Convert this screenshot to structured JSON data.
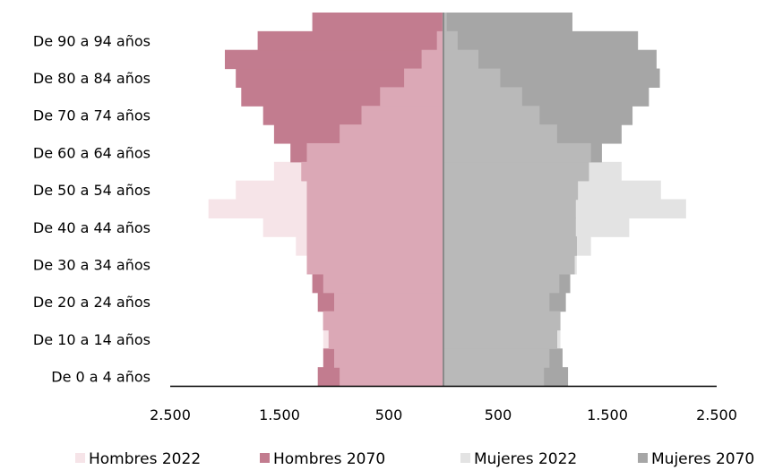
{
  "chart_data": {
    "type": "bar",
    "orientation": "horizontal",
    "layout": "population-pyramid",
    "categories": [
      "De 0 a 4 años",
      "De 5 a 9 años",
      "De 10 a 14 años",
      "De 15 a 19 años",
      "De 20 a 24 años",
      "De 25 a 29 años",
      "De 30 a 34 años",
      "De 35 a 39 años",
      "De 40 a 44 años",
      "De 45 a 49 años",
      "De 50 a 54 años",
      "De 55 a 59 años",
      "De 60 a 64 años",
      "De 65 a 69 años",
      "De 70 a 74 años",
      "De 75 a 79 años",
      "De 80 a 84 años",
      "De 85 a 89 años",
      "De 90 a 94 años",
      "De 95 a 99 años"
    ],
    "visible_category_labels": [
      "De 0 a 4 años",
      "De 10 a 14 años",
      "De 20 a 24 años",
      "De 30 a 34 años",
      "De 40 a 44 años",
      "De 50 a 54 años",
      "De 60 a 64 años",
      "De 70 a 74 años",
      "De 80 a 84 años",
      "De 90 a 94 años"
    ],
    "series": [
      {
        "name": "Hombres 2022",
        "side": "left",
        "color": "#f6e4e8",
        "values": [
          950,
          1000,
          1100,
          1100,
          1000,
          1100,
          1250,
          1350,
          1650,
          2150,
          1900,
          1550,
          1250,
          950,
          750,
          580,
          360,
          200,
          60,
          10
        ]
      },
      {
        "name": "Hombres 2070",
        "side": "left",
        "color": "#c27c8f",
        "values": [
          1150,
          1100,
          1050,
          1100,
          1150,
          1200,
          1250,
          1250,
          1250,
          1250,
          1250,
          1300,
          1400,
          1550,
          1650,
          1850,
          1900,
          2000,
          1700,
          1200
        ]
      },
      {
        "name": "Mujeres 2022",
        "side": "right",
        "color": "#e3e3e3",
        "values": [
          920,
          970,
          1070,
          1070,
          970,
          1060,
          1220,
          1350,
          1700,
          2220,
          1990,
          1630,
          1350,
          1040,
          880,
          720,
          520,
          320,
          130,
          30
        ]
      },
      {
        "name": "Mujeres 2070",
        "side": "right",
        "color": "#a6a6a6",
        "values": [
          1140,
          1090,
          1040,
          1070,
          1120,
          1160,
          1200,
          1220,
          1210,
          1210,
          1230,
          1330,
          1450,
          1630,
          1730,
          1880,
          1980,
          1950,
          1780,
          1180
        ]
      }
    ],
    "x_tick_labels": [
      "2.500",
      "1.500",
      "500",
      "500",
      "1.500",
      "2.500"
    ],
    "x_tick_values": [
      -2500,
      -1500,
      -500,
      500,
      1500,
      2500
    ],
    "xlim": [
      -2500,
      2500
    ],
    "legend": {
      "position": "bottom"
    },
    "grid": false
  }
}
